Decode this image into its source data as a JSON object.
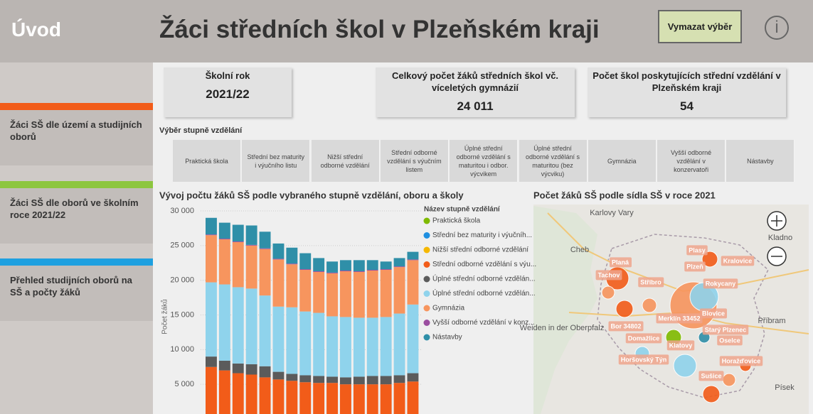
{
  "header": {
    "home": "Úvod",
    "title": "Žáci středních škol v Plzeňském kraji",
    "clear_button": "Vymazat výběr",
    "info": "i"
  },
  "nav": [
    "Žáci SŠ dle území a studijních oborů",
    "Žáci SŠ dle oborů ve školním roce 2021/22",
    "Přehled studijních oborů na SŠ a počty žáků"
  ],
  "kpis": [
    {
      "label": "Školní rok",
      "value": "2021/22"
    },
    {
      "label": "Celkový počet žáků středních škol vč. víceletých gymnázií",
      "value": "24 011"
    },
    {
      "label": "Počet škol poskytujících střední vzdělání v Plzeňském kraji",
      "value": "54"
    }
  ],
  "slicer": {
    "title": "Výběr stupně vzdělání",
    "options": [
      "Praktická škola",
      "Střední bez maturity i výučního listu",
      "Nižší střední odborné vzdělání",
      "Střední odborné vzdělání s výučním listem",
      "Úplné střední odborné vzdělání s maturitou i odbor. výcvikem",
      "Úplné střední odborné vzdělání s maturitou (bez výcviku)",
      "Gymnázia",
      "Vyšší odborné vzdělání v konzervatoři",
      "Nástavby"
    ]
  },
  "chart_data": {
    "type": "bar",
    "stacked": true,
    "title": "Vývoj počtu žáků SŠ podle vybraného stupně vzdělání, oboru a školy",
    "y_label": "Počet žáků",
    "legend_title": "Název stupně vzdělání",
    "grid": true,
    "categories": [
      null,
      null,
      null,
      null,
      null,
      null,
      null,
      null,
      null,
      null,
      null,
      null,
      null,
      null,
      null,
      null
    ],
    "ylim": [
      0,
      30000
    ],
    "yticks": [
      {
        "value": 5000,
        "label": "5 000"
      },
      {
        "value": 10000,
        "label": "10 000"
      },
      {
        "value": 15000,
        "label": "15 000"
      },
      {
        "value": 20000,
        "label": "20 000"
      },
      {
        "value": 25000,
        "label": "25 000"
      },
      {
        "value": 30000,
        "label": "30 000"
      }
    ],
    "series": [
      {
        "name": "Praktická škola",
        "color": "#7fba00",
        "values": [
          200,
          200,
          200,
          200,
          200,
          200,
          200,
          200,
          200,
          200,
          200,
          200,
          200,
          200,
          200,
          200
        ]
      },
      {
        "name": "Střední bez maturity i výučníh...",
        "color": "#1f8fe0",
        "values": [
          100,
          100,
          100,
          100,
          100,
          100,
          100,
          100,
          100,
          100,
          100,
          100,
          100,
          100,
          100,
          100
        ]
      },
      {
        "name": "Nižší střední odborné vzdělání",
        "color": "#f5b800",
        "values": [
          100,
          100,
          100,
          100,
          100,
          100,
          100,
          100,
          100,
          100,
          100,
          100,
          100,
          100,
          100,
          100
        ]
      },
      {
        "name": "Střední odborné vzdělání s výu...",
        "color": "#f25c19",
        "values": [
          7100,
          6600,
          6200,
          6000,
          5600,
          5300,
          5100,
          4900,
          4800,
          4800,
          4600,
          4600,
          4600,
          4600,
          4800,
          5000
        ]
      },
      {
        "name": "Úplné střední odborné vzdělán...",
        "color": "#5b5b5b",
        "values": [
          1500,
          1400,
          1400,
          1500,
          1600,
          1100,
          1000,
          1000,
          1000,
          900,
          1000,
          1100,
          1200,
          1200,
          1100,
          1200
        ]
      },
      {
        "name": "Úplné střední odborné vzdělán...",
        "color": "#8fd3ec",
        "values": [
          10700,
          11000,
          11000,
          10900,
          10200,
          9400,
          9600,
          9200,
          9100,
          8700,
          8700,
          8500,
          8400,
          8500,
          8900,
          9900
        ]
      },
      {
        "name": "Gymnázia",
        "color": "#f7955e",
        "values": [
          6800,
          6500,
          6500,
          6200,
          6700,
          6800,
          6200,
          6000,
          5900,
          6200,
          6600,
          6600,
          6800,
          6800,
          6700,
          6400
        ]
      },
      {
        "name": "Vyšší odborné vzdělání v konz...",
        "color": "#9b4ea0",
        "values": [
          100,
          100,
          100,
          100,
          100,
          100,
          100,
          100,
          100,
          100,
          100,
          100,
          100,
          100,
          100,
          100
        ]
      },
      {
        "name": "Nástavby",
        "color": "#2f8fa8",
        "values": [
          2400,
          2300,
          2400,
          2800,
          2400,
          2200,
          2300,
          2300,
          1900,
          1600,
          1500,
          1600,
          1400,
          1100,
          1200,
          1100
        ]
      }
    ]
  },
  "map": {
    "title": "Počet žáků SŠ podle sídla SŠ v roce 2021",
    "places": [
      "Karlovy Vary",
      "Kladno",
      "Cheb",
      "Planá",
      "Plasy",
      "Plzeň",
      "Kralovice",
      "Tachov",
      "Stříbro",
      "Rokycany",
      "Blovice",
      "Merklín 33452",
      "Bor 34802",
      "Starý Plzenec",
      "Weiden in der Oberpfalz",
      "Příbram",
      "Domažlice",
      "Klatovy",
      "Oselce",
      "Horšovský Týn",
      "Horažďovice",
      "Sušice",
      "Písek"
    ]
  }
}
